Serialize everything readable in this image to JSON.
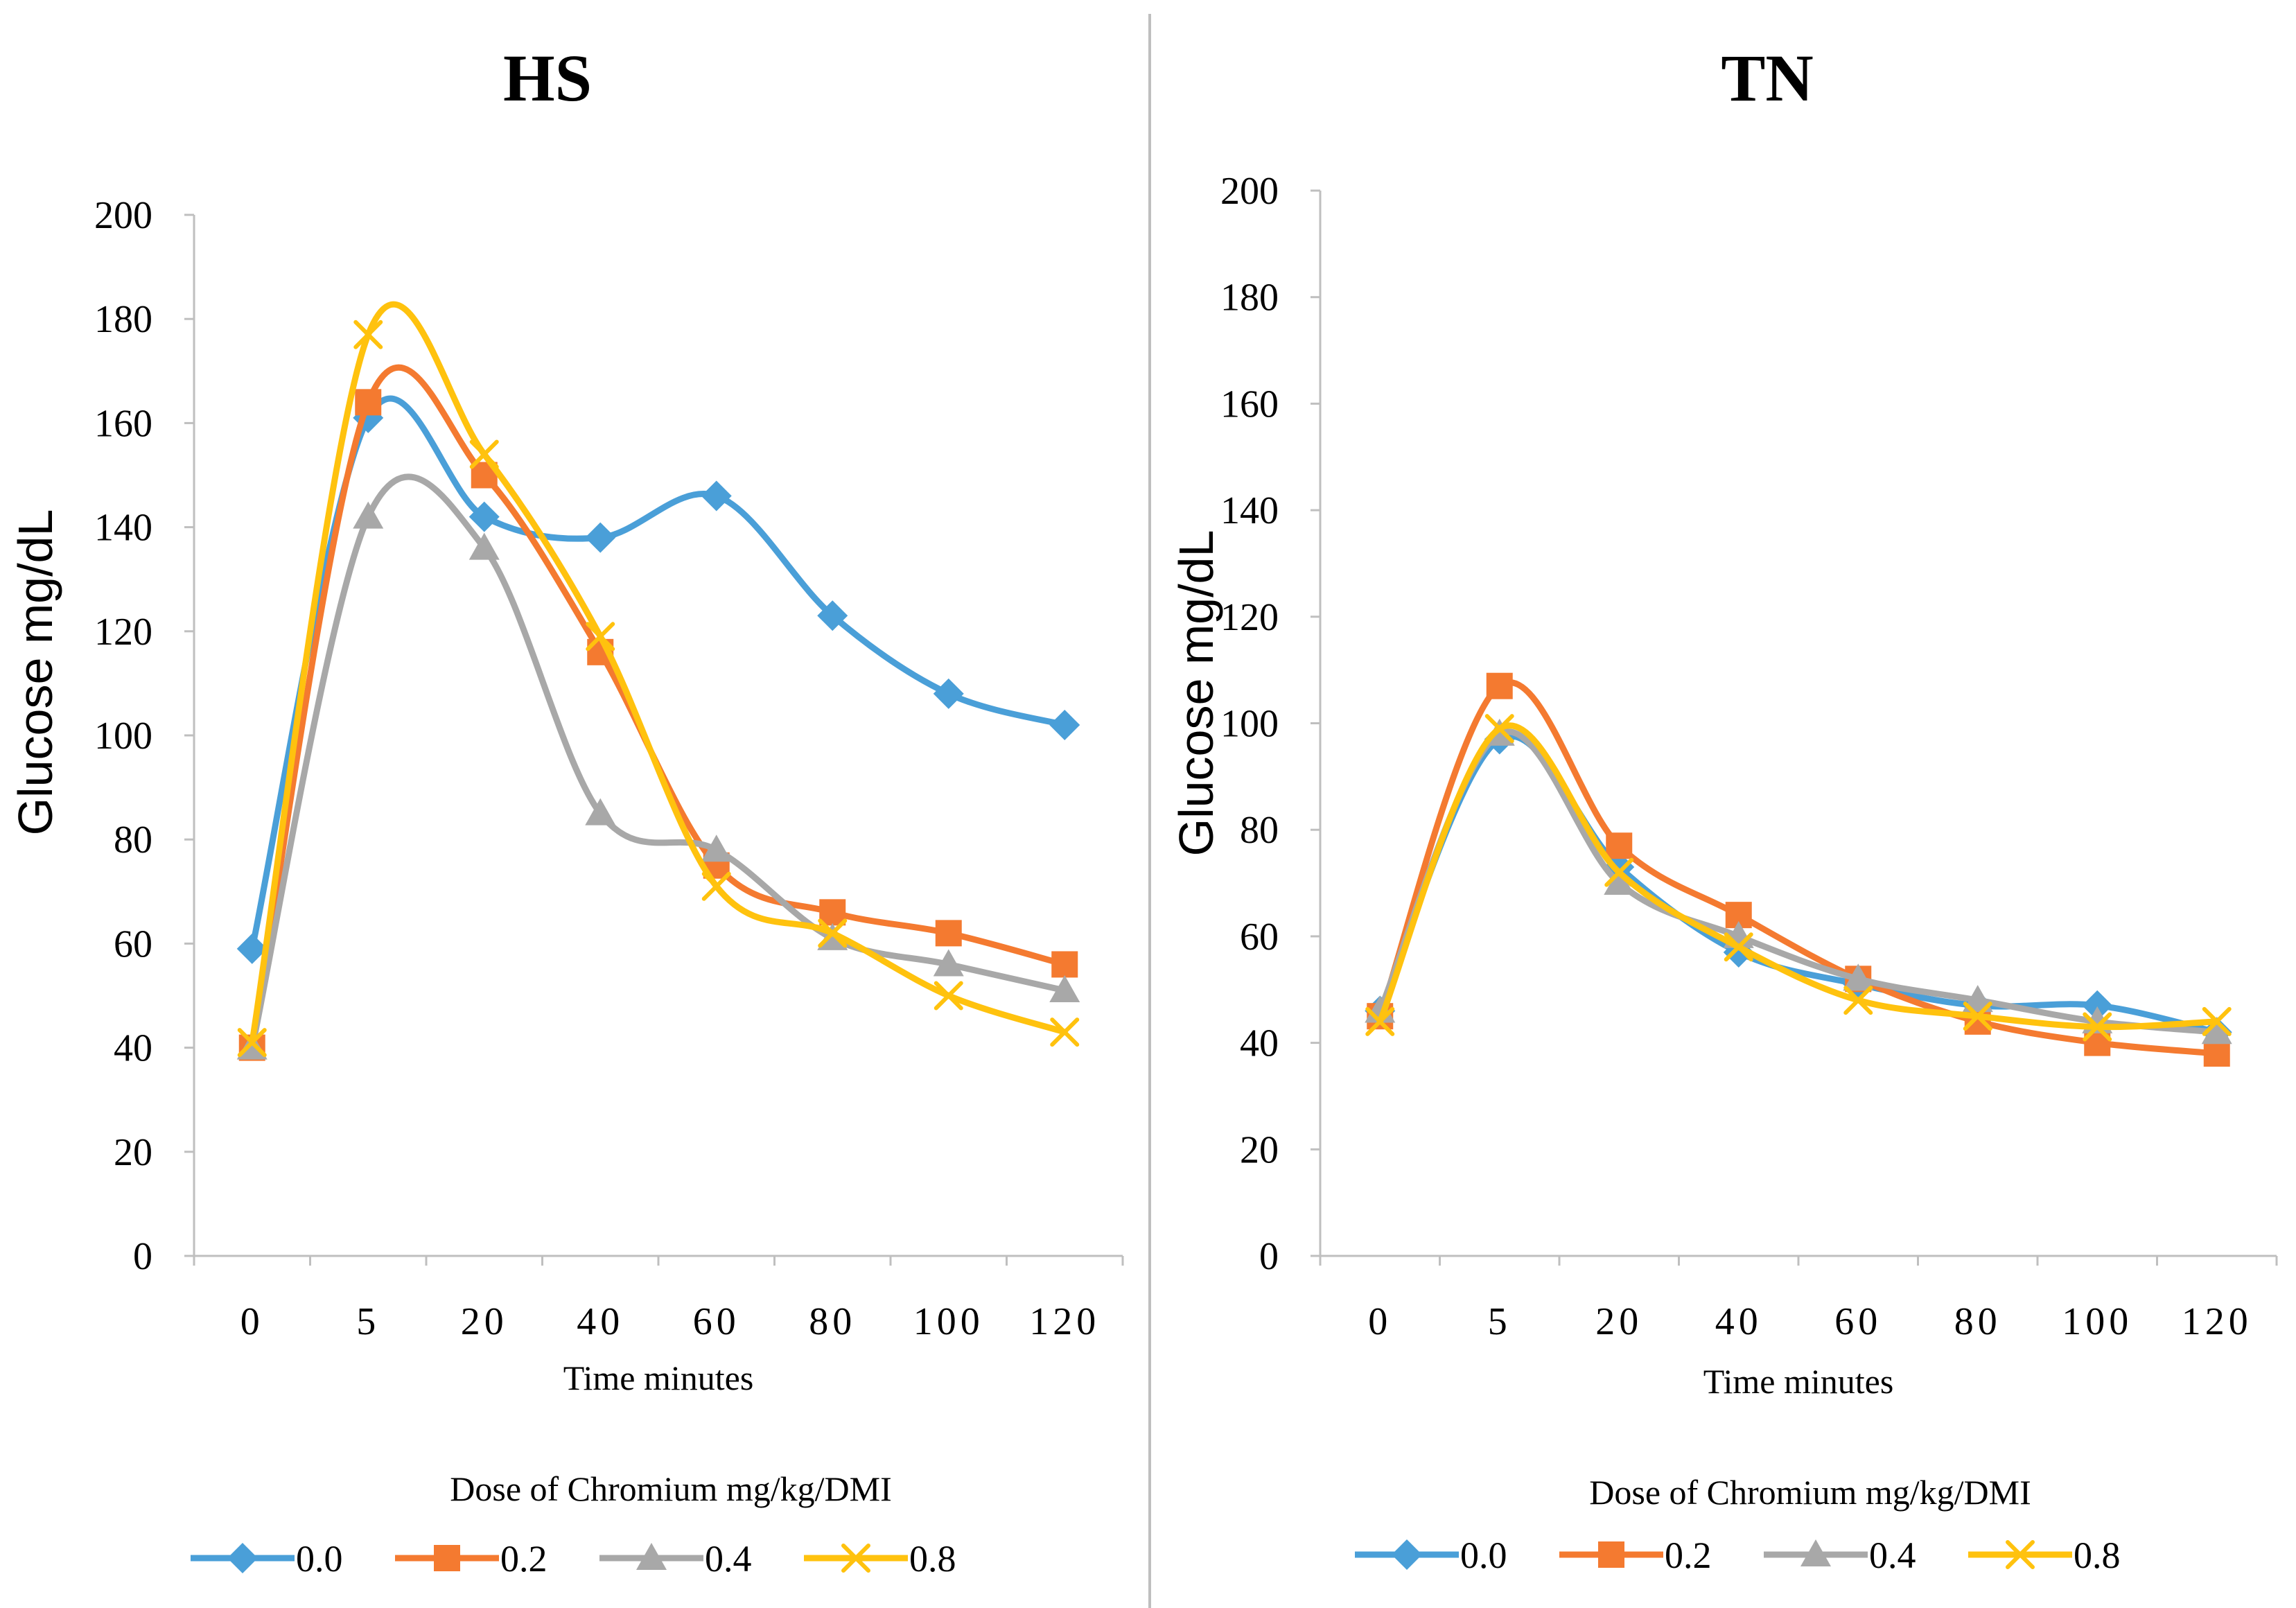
{
  "colors": {
    "0.0": "#4a9fd8",
    "0.2": "#f47a30",
    "0.4": "#a8a8a8",
    "0.8": "#ffc20e",
    "divider": "#bfbfbf"
  },
  "chart_data": [
    {
      "type": "line",
      "title": "HS",
      "xlabel": "Time minutes",
      "ylabel": "Glucose mg/dL",
      "categories": [
        "0",
        "5",
        "20",
        "40",
        "60",
        "80",
        "100",
        "120"
      ],
      "ylim": [
        0,
        200
      ],
      "yticks": [
        "0",
        "20",
        "40",
        "60",
        "80",
        "100",
        "120",
        "140",
        "160",
        "180",
        "200"
      ],
      "legend_title": "Dose of Chromium mg/kg/DMI",
      "legend_position": "bottom",
      "series": [
        {
          "name": "0.0",
          "marker": "diamond",
          "values": [
            59,
            161,
            142,
            138,
            146,
            123,
            108,
            102
          ]
        },
        {
          "name": "0.2",
          "marker": "square",
          "values": [
            40,
            164,
            150,
            116,
            75,
            66,
            62,
            56
          ]
        },
        {
          "name": "0.4",
          "marker": "triangle",
          "values": [
            40,
            142,
            136,
            85,
            78,
            61,
            56,
            51
          ]
        },
        {
          "name": "0.8",
          "marker": "x",
          "values": [
            41,
            177,
            154,
            119,
            71,
            62,
            50,
            43
          ]
        }
      ]
    },
    {
      "type": "line",
      "title": "TN",
      "xlabel": "Time minutes",
      "ylabel": "Glucose mg/dL",
      "categories": [
        "0",
        "5",
        "20",
        "40",
        "60",
        "80",
        "100",
        "120"
      ],
      "ylim": [
        0,
        200
      ],
      "yticks": [
        "0",
        "20",
        "40",
        "60",
        "80",
        "100",
        "120",
        "140",
        "160",
        "180",
        "200"
      ],
      "legend_title": "Dose of Chromium mg/kg/DMI",
      "legend_position": "bottom",
      "series": [
        {
          "name": "0.0",
          "marker": "diamond",
          "values": [
            46,
            97,
            73,
            57,
            51,
            47,
            47,
            42
          ]
        },
        {
          "name": "0.2",
          "marker": "square",
          "values": [
            45,
            107,
            77,
            64,
            52,
            44,
            40,
            38
          ]
        },
        {
          "name": "0.4",
          "marker": "triangle",
          "values": [
            46,
            98,
            70,
            60,
            52,
            48,
            44,
            42
          ]
        },
        {
          "name": "0.8",
          "marker": "x",
          "values": [
            44,
            99,
            72,
            58,
            48,
            45,
            43,
            44
          ]
        }
      ]
    }
  ]
}
